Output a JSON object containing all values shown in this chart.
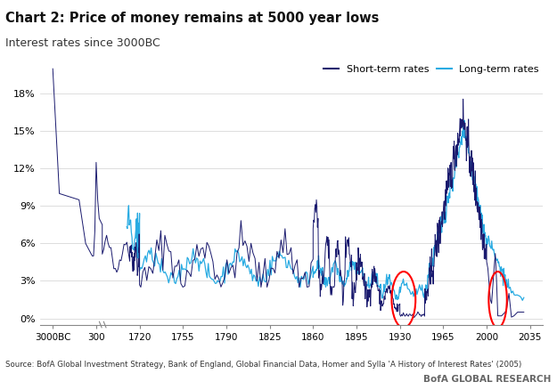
{
  "title": "Chart 2: Price of money remains at 5000 year lows",
  "subtitle": "Interest rates since 3000BC",
  "source_text": "Source: BofA Global Investment Strategy, Bank of England, Global Financial Data, Homer and Sylla 'A History of Interest Rates' (2005)",
  "branding": "BofA GLOBAL RESEARCH",
  "short_term_color": "#1a1a6e",
  "long_term_color": "#29abe2",
  "background_color": "#ffffff",
  "ylabel_ticks": [
    "0%",
    "3%",
    "6%",
    "9%",
    "12%",
    "15%",
    "18%"
  ],
  "ylim": [
    -0.5,
    21
  ],
  "xtick_labels": [
    "3000BC",
    "300",
    "1720",
    "1755",
    "1790",
    "1825",
    "1860",
    "1895",
    "1930",
    "1965",
    "2000",
    "2035"
  ],
  "xtick_positions": [
    0,
    1,
    2,
    3,
    4,
    5,
    6,
    7,
    8,
    9,
    10,
    11
  ],
  "xlim": [
    -0.3,
    11.3
  ]
}
